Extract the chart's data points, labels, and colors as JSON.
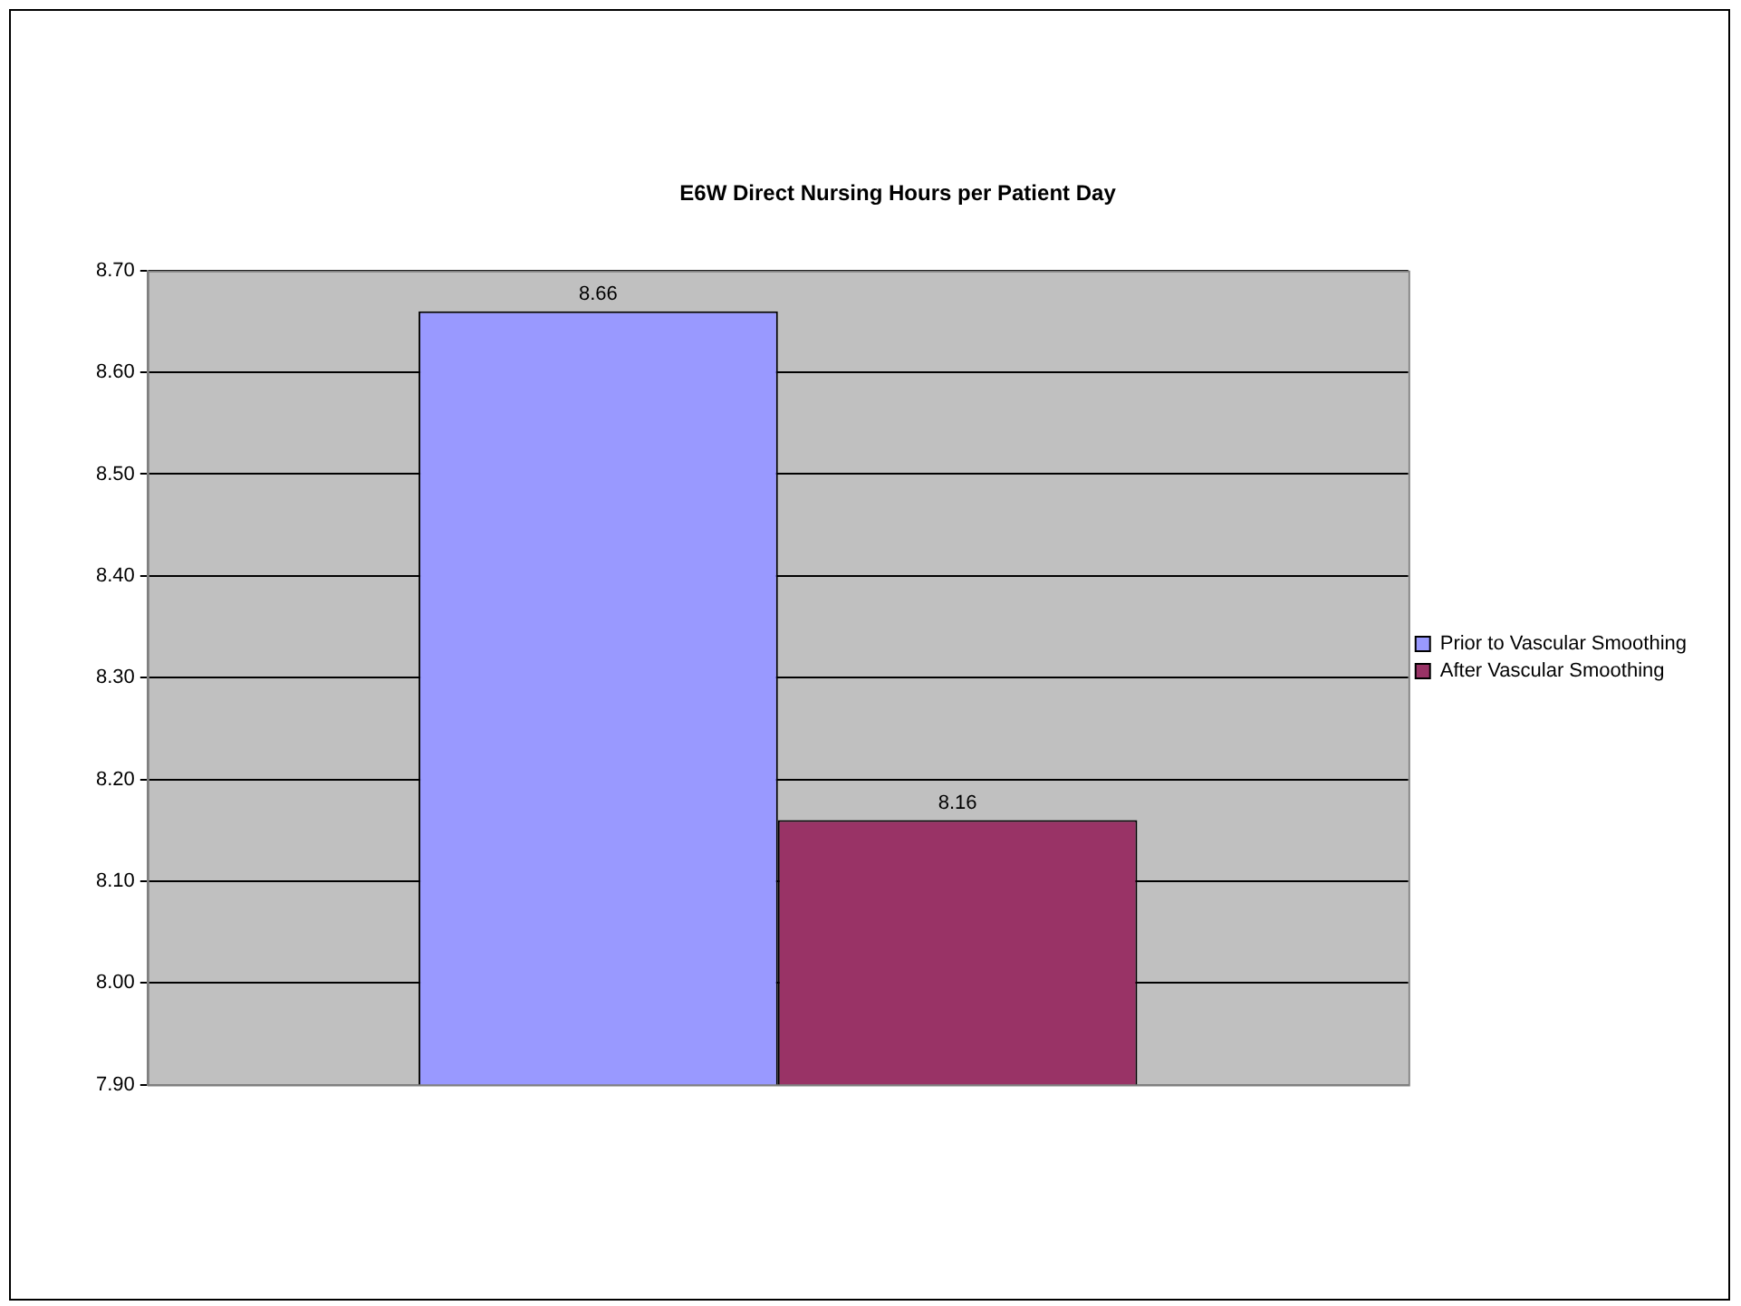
{
  "chart_data": {
    "type": "bar",
    "title": "E6W Direct Nursing Hours per Patient Day",
    "categories": [
      null
    ],
    "series": [
      {
        "name": "Prior to Vascular Smoothing",
        "color": "#9999ff",
        "values": [
          8.66
        ]
      },
      {
        "name": "After Vascular Smoothing",
        "color": "#993366",
        "values": [
          8.16
        ]
      }
    ],
    "ylim": [
      7.9,
      8.7
    ],
    "yticks": [
      {
        "value": 7.9,
        "label": "7.90"
      },
      {
        "value": 8.0,
        "label": "8.00"
      },
      {
        "value": 8.1,
        "label": "8.10"
      },
      {
        "value": 8.2,
        "label": "8.20"
      },
      {
        "value": 8.3,
        "label": "8.30"
      },
      {
        "value": 8.4,
        "label": "8.40"
      },
      {
        "value": 8.5,
        "label": "8.50"
      },
      {
        "value": 8.6,
        "label": "8.60"
      },
      {
        "value": 8.7,
        "label": "8.70"
      }
    ],
    "grid": "y",
    "legend": "right",
    "data_labels": true
  }
}
